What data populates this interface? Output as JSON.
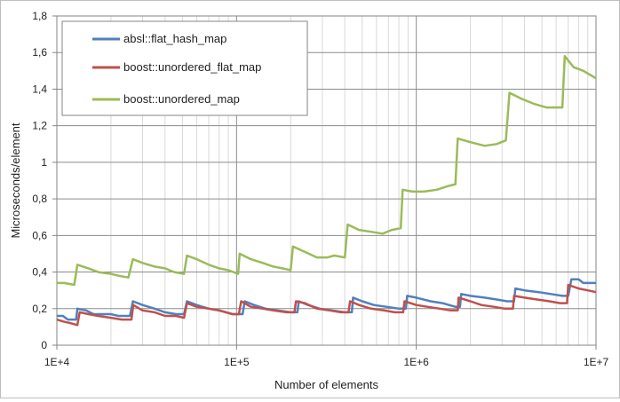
{
  "chart_data": {
    "type": "line",
    "title": "",
    "xlabel": "Number of elements",
    "ylabel": "Microseconds/element",
    "x_scale": "log",
    "xlim": [
      10000,
      10000000
    ],
    "ylim": [
      0,
      1.8
    ],
    "x_ticks": [
      {
        "value": 10000,
        "label": "1E+4"
      },
      {
        "value": 100000,
        "label": "1E+5"
      },
      {
        "value": 1000000,
        "label": "1E+6"
      },
      {
        "value": 10000000,
        "label": "1E+7"
      }
    ],
    "y_ticks": [
      {
        "value": 0,
        "label": "0"
      },
      {
        "value": 0.2,
        "label": "0,2"
      },
      {
        "value": 0.4,
        "label": "0,4"
      },
      {
        "value": 0.6,
        "label": "0,6"
      },
      {
        "value": 0.8,
        "label": "0,8"
      },
      {
        "value": 1.0,
        "label": "1"
      },
      {
        "value": 1.2,
        "label": "1,2"
      },
      {
        "value": 1.4,
        "label": "1,4"
      },
      {
        "value": 1.6,
        "label": "1,6"
      },
      {
        "value": 1.8,
        "label": "1,8"
      }
    ],
    "grid": true,
    "legend_position": "top-left",
    "series": [
      {
        "name": "absl::flat_hash_map",
        "color": "#4f81bd",
        "points": [
          [
            10000,
            0.16
          ],
          [
            10800,
            0.16
          ],
          [
            11500,
            0.14
          ],
          [
            12800,
            0.14
          ],
          [
            13000,
            0.2
          ],
          [
            14500,
            0.19
          ],
          [
            16000,
            0.17
          ],
          [
            18000,
            0.17
          ],
          [
            20000,
            0.17
          ],
          [
            22000,
            0.16
          ],
          [
            25500,
            0.16
          ],
          [
            26500,
            0.24
          ],
          [
            30000,
            0.22
          ],
          [
            35000,
            0.2
          ],
          [
            40000,
            0.18
          ],
          [
            46000,
            0.17
          ],
          [
            51000,
            0.17
          ],
          [
            53000,
            0.24
          ],
          [
            60000,
            0.22
          ],
          [
            70000,
            0.2
          ],
          [
            80000,
            0.19
          ],
          [
            95000,
            0.17
          ],
          [
            108000,
            0.17
          ],
          [
            111000,
            0.24
          ],
          [
            125000,
            0.22
          ],
          [
            145000,
            0.2
          ],
          [
            170000,
            0.19
          ],
          [
            200000,
            0.18
          ],
          [
            218000,
            0.18
          ],
          [
            222000,
            0.24
          ],
          [
            250000,
            0.22
          ],
          [
            290000,
            0.2
          ],
          [
            340000,
            0.19
          ],
          [
            400000,
            0.18
          ],
          [
            438000,
            0.18
          ],
          [
            445000,
            0.26
          ],
          [
            500000,
            0.24
          ],
          [
            580000,
            0.22
          ],
          [
            680000,
            0.21
          ],
          [
            800000,
            0.2
          ],
          [
            875000,
            0.2
          ],
          [
            890000,
            0.27
          ],
          [
            1000000,
            0.26
          ],
          [
            1200000,
            0.24
          ],
          [
            1400000,
            0.23
          ],
          [
            1650000,
            0.21
          ],
          [
            1750000,
            0.21
          ],
          [
            1780000,
            0.28
          ],
          [
            2000000,
            0.27
          ],
          [
            2400000,
            0.26
          ],
          [
            2800000,
            0.25
          ],
          [
            3200000,
            0.24
          ],
          [
            3500000,
            0.24
          ],
          [
            3560000,
            0.31
          ],
          [
            4000000,
            0.3
          ],
          [
            4800000,
            0.29
          ],
          [
            5600000,
            0.28
          ],
          [
            6500000,
            0.27
          ],
          [
            7000000,
            0.27
          ],
          [
            7300000,
            0.36
          ],
          [
            8000000,
            0.36
          ],
          [
            8500000,
            0.34
          ],
          [
            10000000,
            0.34
          ]
        ]
      },
      {
        "name": "boost::unordered_flat_map",
        "color": "#c0504d",
        "points": [
          [
            10000,
            0.14
          ],
          [
            10800,
            0.13
          ],
          [
            12000,
            0.12
          ],
          [
            13000,
            0.11
          ],
          [
            13400,
            0.18
          ],
          [
            15000,
            0.17
          ],
          [
            17000,
            0.16
          ],
          [
            20000,
            0.15
          ],
          [
            23000,
            0.14
          ],
          [
            26000,
            0.14
          ],
          [
            26600,
            0.22
          ],
          [
            30000,
            0.19
          ],
          [
            35000,
            0.18
          ],
          [
            40000,
            0.16
          ],
          [
            46000,
            0.16
          ],
          [
            51000,
            0.15
          ],
          [
            53000,
            0.23
          ],
          [
            60000,
            0.21
          ],
          [
            70000,
            0.2
          ],
          [
            80000,
            0.19
          ],
          [
            95000,
            0.17
          ],
          [
            103000,
            0.17
          ],
          [
            106000,
            0.24
          ],
          [
            120000,
            0.21
          ],
          [
            140000,
            0.2
          ],
          [
            160000,
            0.19
          ],
          [
            190000,
            0.18
          ],
          [
            210000,
            0.18
          ],
          [
            214000,
            0.24
          ],
          [
            240000,
            0.23
          ],
          [
            280000,
            0.2
          ],
          [
            330000,
            0.19
          ],
          [
            380000,
            0.18
          ],
          [
            420000,
            0.18
          ],
          [
            428000,
            0.24
          ],
          [
            480000,
            0.22
          ],
          [
            560000,
            0.2
          ],
          [
            660000,
            0.19
          ],
          [
            760000,
            0.18
          ],
          [
            845000,
            0.18
          ],
          [
            860000,
            0.24
          ],
          [
            1000000,
            0.22
          ],
          [
            1150000,
            0.21
          ],
          [
            1350000,
            0.2
          ],
          [
            1550000,
            0.19
          ],
          [
            1700000,
            0.19
          ],
          [
            1720000,
            0.26
          ],
          [
            2000000,
            0.24
          ],
          [
            2300000,
            0.22
          ],
          [
            2700000,
            0.21
          ],
          [
            3100000,
            0.2
          ],
          [
            3450000,
            0.2
          ],
          [
            3500000,
            0.27
          ],
          [
            4000000,
            0.26
          ],
          [
            4700000,
            0.25
          ],
          [
            5500000,
            0.24
          ],
          [
            6300000,
            0.23
          ],
          [
            6900000,
            0.23
          ],
          [
            7000000,
            0.33
          ],
          [
            8000000,
            0.31
          ],
          [
            9000000,
            0.3
          ],
          [
            10000000,
            0.29
          ]
        ]
      },
      {
        "name": "boost::unordered_map",
        "color": "#9bbb59",
        "points": [
          [
            10000,
            0.34
          ],
          [
            11000,
            0.34
          ],
          [
            12500,
            0.33
          ],
          [
            13000,
            0.44
          ],
          [
            15000,
            0.42
          ],
          [
            17000,
            0.4
          ],
          [
            20000,
            0.39
          ],
          [
            22000,
            0.38
          ],
          [
            25000,
            0.37
          ],
          [
            26500,
            0.47
          ],
          [
            30000,
            0.45
          ],
          [
            35000,
            0.43
          ],
          [
            40000,
            0.42
          ],
          [
            45000,
            0.4
          ],
          [
            51000,
            0.39
          ],
          [
            53000,
            0.49
          ],
          [
            60000,
            0.47
          ],
          [
            70000,
            0.44
          ],
          [
            80000,
            0.42
          ],
          [
            90000,
            0.41
          ],
          [
            102000,
            0.39
          ],
          [
            104000,
            0.5
          ],
          [
            120000,
            0.47
          ],
          [
            140000,
            0.45
          ],
          [
            160000,
            0.43
          ],
          [
            180000,
            0.42
          ],
          [
            200000,
            0.41
          ],
          [
            206000,
            0.54
          ],
          [
            240000,
            0.51
          ],
          [
            280000,
            0.48
          ],
          [
            320000,
            0.48
          ],
          [
            350000,
            0.49
          ],
          [
            400000,
            0.48
          ],
          [
            415000,
            0.66
          ],
          [
            480000,
            0.63
          ],
          [
            560000,
            0.62
          ],
          [
            650000,
            0.61
          ],
          [
            730000,
            0.63
          ],
          [
            820000,
            0.64
          ],
          [
            840000,
            0.85
          ],
          [
            950000,
            0.84
          ],
          [
            1000000,
            0.84
          ],
          [
            1100000,
            0.84
          ],
          [
            1300000,
            0.85
          ],
          [
            1500000,
            0.87
          ],
          [
            1650000,
            0.88
          ],
          [
            1700000,
            1.13
          ],
          [
            2000000,
            1.11
          ],
          [
            2400000,
            1.09
          ],
          [
            2800000,
            1.1
          ],
          [
            3150000,
            1.12
          ],
          [
            3300000,
            1.38
          ],
          [
            3800000,
            1.35
          ],
          [
            4500000,
            1.32
          ],
          [
            5300000,
            1.3
          ],
          [
            6500000,
            1.3
          ],
          [
            6700000,
            1.58
          ],
          [
            7500000,
            1.52
          ],
          [
            8500000,
            1.5
          ],
          [
            9200000,
            1.48
          ],
          [
            10000000,
            1.46
          ]
        ]
      }
    ]
  }
}
